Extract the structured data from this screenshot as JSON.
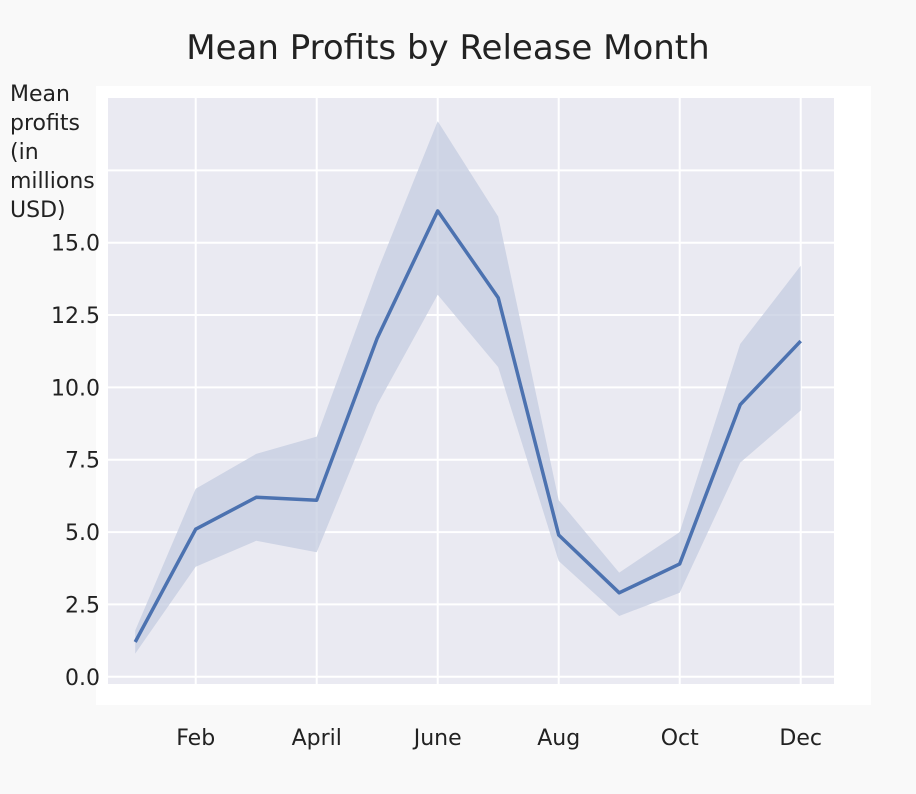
{
  "chart_data": {
    "type": "line",
    "title": "Mean Profits by Release Month",
    "xlabel": "",
    "ylabel": "Mean\nprofits\n(in\nmillions\nUSD)",
    "x": [
      1,
      2,
      3,
      4,
      5,
      6,
      7,
      8,
      9,
      10,
      11,
      12
    ],
    "series": [
      {
        "values": [
          1.2,
          5.1,
          6.2,
          6.1,
          11.7,
          16.1,
          13.1,
          4.9,
          2.9,
          3.9,
          9.4,
          11.6
        ],
        "ci_low": [
          0.8,
          3.8,
          4.7,
          4.3,
          9.4,
          13.2,
          10.7,
          4.0,
          2.1,
          2.9,
          7.4,
          9.2
        ],
        "ci_high": [
          1.6,
          6.5,
          7.7,
          8.3,
          14.0,
          19.2,
          15.9,
          6.1,
          3.6,
          5.0,
          11.5,
          14.2
        ],
        "color": "#4c72b0"
      }
    ],
    "xticks": [
      {
        "x": 2,
        "label": "Feb"
      },
      {
        "x": 4,
        "label": "April"
      },
      {
        "x": 6,
        "label": "June"
      },
      {
        "x": 8,
        "label": "Aug"
      },
      {
        "x": 10,
        "label": "Oct"
      },
      {
        "x": 12,
        "label": "Dec"
      }
    ],
    "yticks": [
      0.0,
      2.5,
      5.0,
      7.5,
      10.0,
      12.5,
      15.0
    ],
    "ytick_labels": [
      "0.0",
      "2.5",
      "5.0",
      "7.5",
      "10.0",
      "12.5",
      "15.0"
    ],
    "xlim": [
      0.55,
      12.55
    ],
    "ylim": [
      -0.25,
      20.0
    ],
    "grid": true,
    "plot_background": "#eaeaf2",
    "grid_color": "#ffffff",
    "band_color": "#c4cce0"
  }
}
